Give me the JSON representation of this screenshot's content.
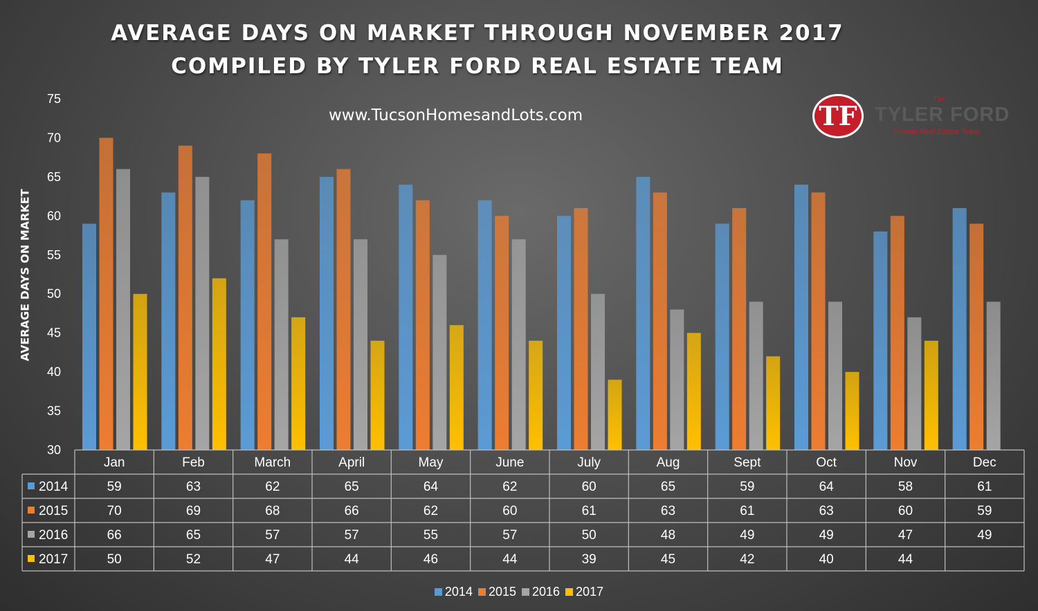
{
  "header": {
    "title_line1": "AVERAGE DAYS ON MARKET THROUGH NOVEMBER 2017",
    "title_line2": "COMPILED BY TYLER FORD REAL ESTATE TEAM",
    "website": "www.TucsonHomesandLots.com"
  },
  "logo": {
    "mark": "TF",
    "small": "The",
    "name": "TYLER FORD",
    "tagline": "Tucson Real Estate Team"
  },
  "chart_data": {
    "type": "bar",
    "ylabel": "AVERAGE DAYS ON MARKET",
    "ylim": [
      30,
      75
    ],
    "yticks": [
      30,
      35,
      40,
      45,
      50,
      55,
      60,
      65,
      70,
      75
    ],
    "categories": [
      "Jan",
      "Feb",
      "March",
      "April",
      "May",
      "June",
      "July",
      "Aug",
      "Sept",
      "Oct",
      "Nov",
      "Dec"
    ],
    "series": [
      {
        "name": "2014",
        "color": "#5b9bd5",
        "values": [
          59,
          63,
          62,
          65,
          64,
          62,
          60,
          65,
          59,
          64,
          58,
          61
        ]
      },
      {
        "name": "2015",
        "color": "#ed7d31",
        "values": [
          70,
          69,
          68,
          66,
          62,
          60,
          61,
          63,
          61,
          63,
          60,
          59
        ]
      },
      {
        "name": "2016",
        "color": "#a5a5a5",
        "values": [
          66,
          65,
          57,
          57,
          55,
          57,
          50,
          48,
          49,
          49,
          47,
          49
        ]
      },
      {
        "name": "2017",
        "color": "#ffc000",
        "values": [
          50,
          52,
          47,
          44,
          46,
          44,
          39,
          45,
          42,
          40,
          44,
          null
        ]
      }
    ],
    "data_table": true,
    "legend": "bottom",
    "grid": false
  }
}
